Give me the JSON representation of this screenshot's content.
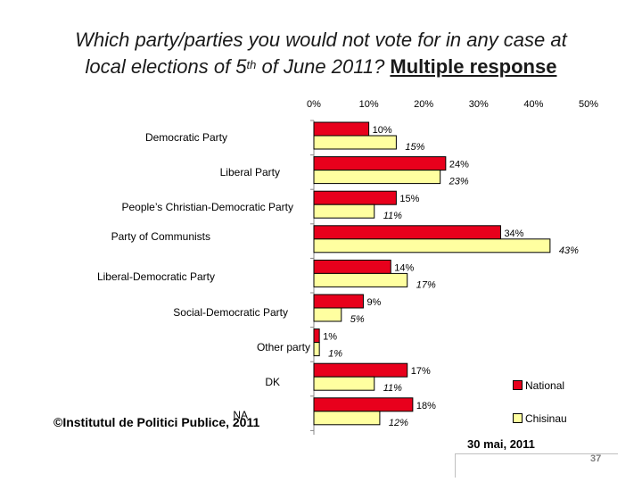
{
  "title": {
    "line1": "Which party/parties you would not vote for in any case at",
    "line2_prefix": "local elections of 5",
    "line2_sup": "th",
    "line2_mid": " of June 2011? ",
    "line2_bold": "Multiple response"
  },
  "colors": {
    "national": "#e8001c",
    "chisinau": "#ffffa0",
    "border": "#000000"
  },
  "chart_data": {
    "type": "bar",
    "orientation": "horizontal",
    "ticks": [
      "0%",
      "10%",
      "20%",
      "30%",
      "40%",
      "50%"
    ],
    "xlim": [
      0,
      50
    ],
    "categories": [
      "Democratic Party",
      "Liberal Party",
      "People’s Christian-Democratic Party",
      "Party of Communists",
      "Liberal-Democratic Party",
      "Social-Democratic Party",
      "Other party",
      "DK",
      "NA"
    ],
    "series": [
      {
        "name": "National",
        "values": [
          10,
          24,
          15,
          34,
          14,
          9,
          1,
          17,
          18
        ],
        "labels": [
          "10%",
          "24%",
          "15%",
          "34%",
          "14%",
          "9%",
          "1%",
          "17%",
          "18%"
        ]
      },
      {
        "name": "Chisinau",
        "values": [
          15,
          23,
          11,
          43,
          17,
          5,
          1,
          11,
          12
        ],
        "labels": [
          "15%",
          "23%",
          "11%",
          "43%",
          "17%",
          "5%",
          "1%",
          "11%",
          "12%"
        ]
      }
    ]
  },
  "legend": {
    "national": "National",
    "chisinau": "Chisinau"
  },
  "footer": {
    "copyright": "©Institutul de Politici Publice, 2011",
    "date": "30 mai, 2011",
    "page": "37"
  }
}
